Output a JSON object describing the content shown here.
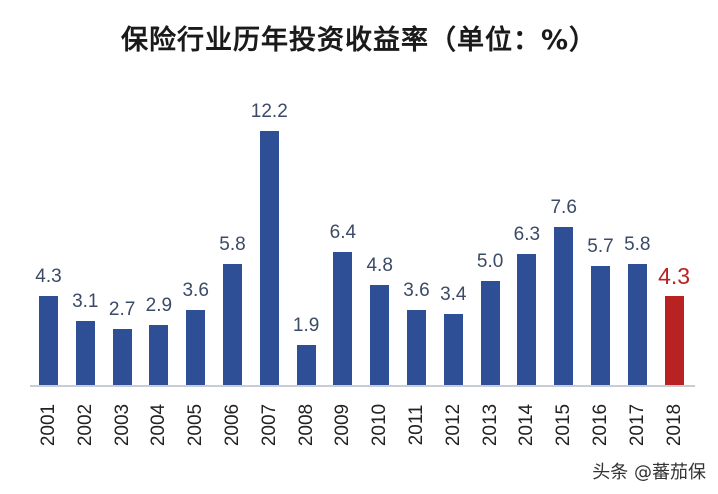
{
  "chart_data": {
    "type": "bar",
    "title": "保险行业历年投资收益率（单位：%）",
    "xlabel": "",
    "ylabel": "",
    "categories": [
      "2001",
      "2002",
      "2003",
      "2004",
      "2005",
      "2006",
      "2007",
      "2008",
      "2009",
      "2010",
      "2011",
      "2012",
      "2013",
      "2014",
      "2015",
      "2016",
      "2017",
      "2018"
    ],
    "values": [
      4.3,
      3.1,
      2.7,
      2.9,
      3.6,
      5.8,
      12.2,
      1.9,
      6.4,
      4.8,
      3.6,
      3.4,
      5.0,
      6.3,
      7.6,
      5.7,
      5.8,
      4.3
    ],
    "value_labels": [
      "4.3",
      "3.1",
      "2.7",
      "2.9",
      "3.6",
      "5.8",
      "12.2",
      "1.9",
      "6.4",
      "4.8",
      "3.6",
      "3.4",
      "5.0",
      "6.3",
      "7.6",
      "5.7",
      "5.8",
      "4.3"
    ],
    "highlight_index": 17,
    "colors": {
      "bar": "#2e4f96",
      "highlight": "#b82222",
      "label": "#3b4a66"
    },
    "ylim": [
      0,
      13
    ],
    "grid": false,
    "legend": null
  },
  "watermark": "头条 @蕃茄保"
}
